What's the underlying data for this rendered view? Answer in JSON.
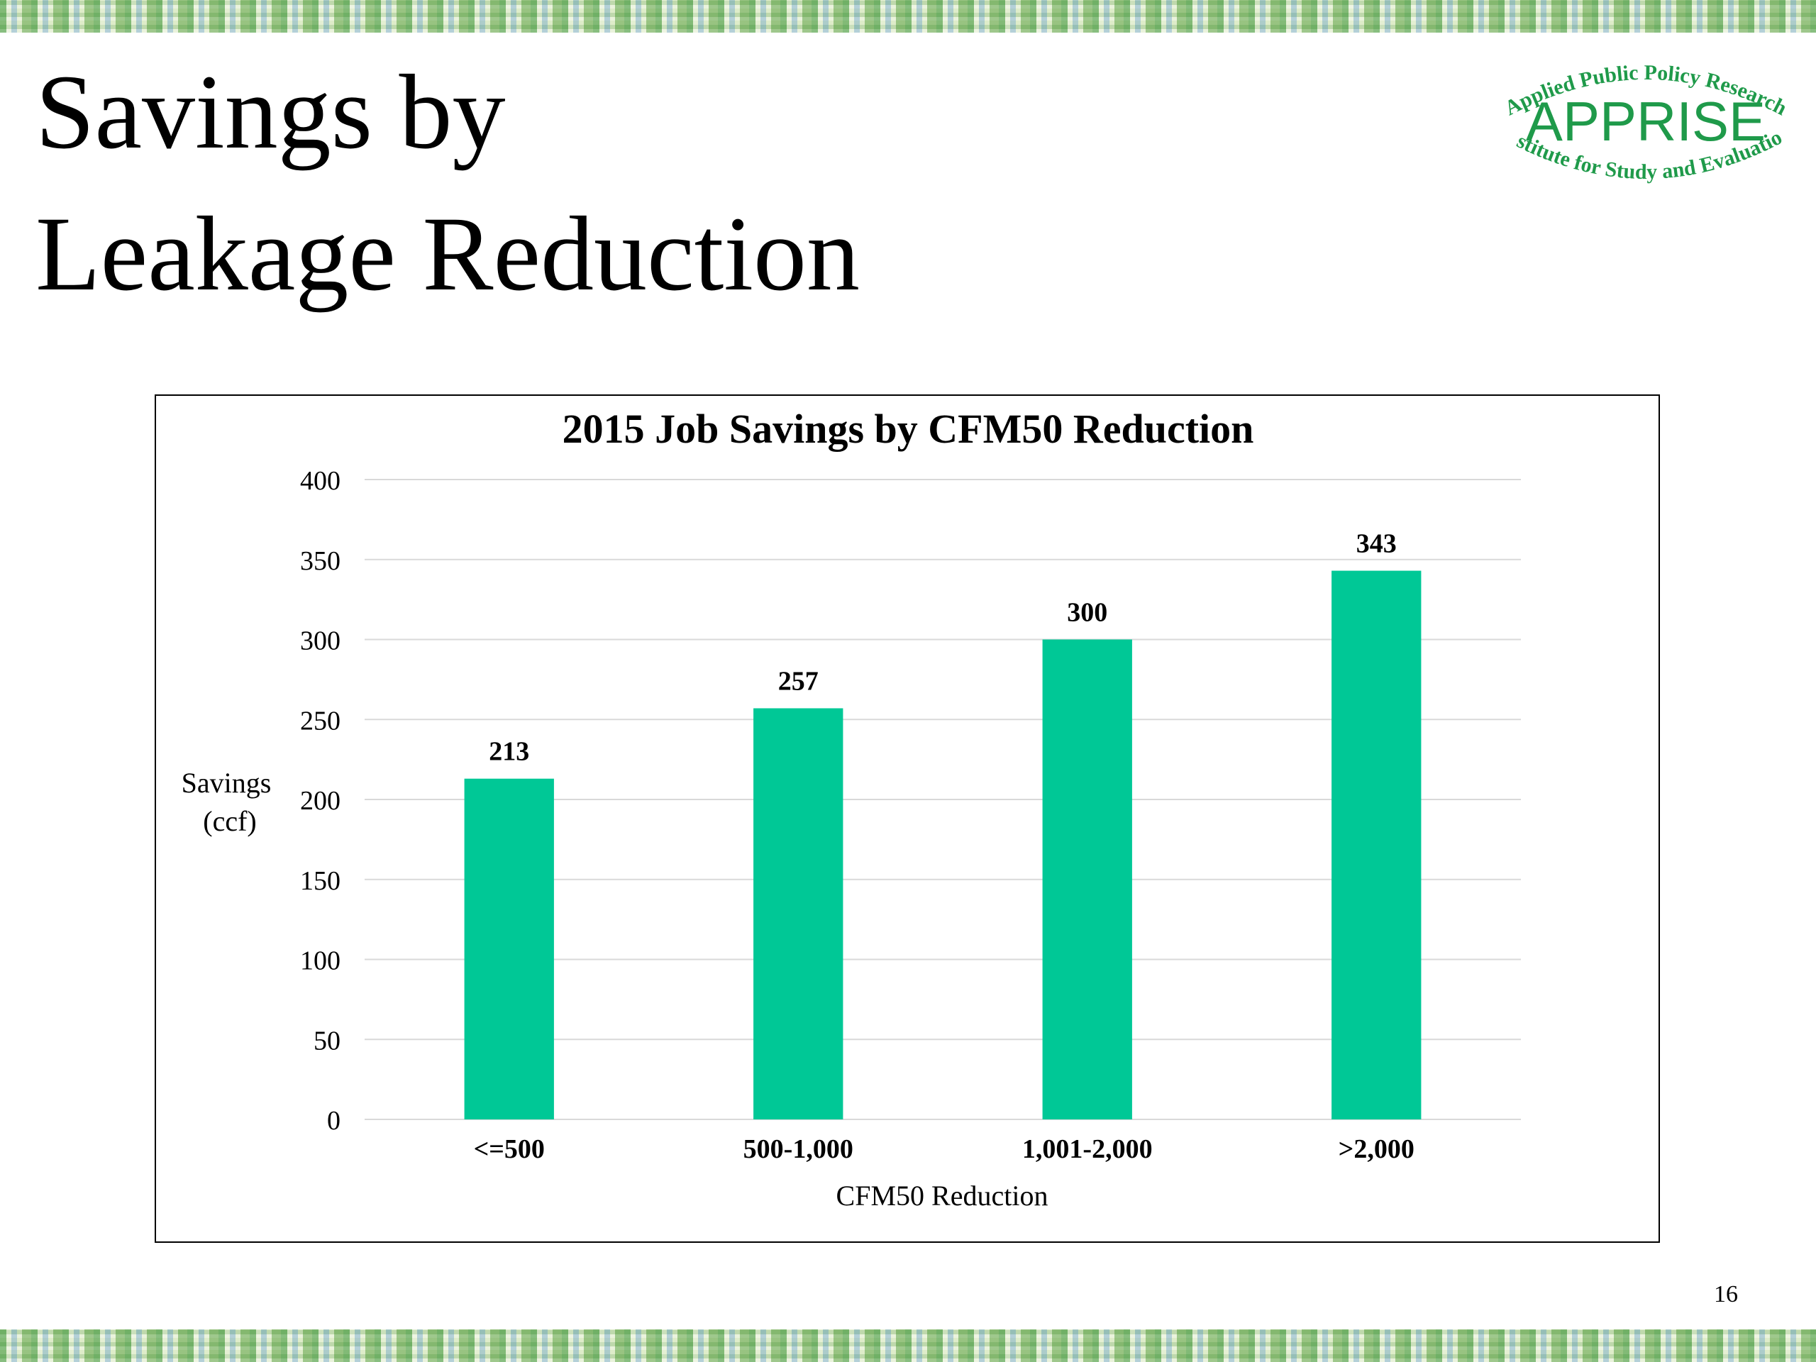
{
  "slide": {
    "title_line1": "Savings by",
    "title_line2": "Leakage Reduction",
    "page_number": "16"
  },
  "logo": {
    "top_arc_text": "Applied Public Policy Research",
    "wordmark": "APPRISE",
    "bottom_arc_text": "Institute for Study and Evaluation",
    "color": "#1f9a4a"
  },
  "chart_data": {
    "type": "bar",
    "title": "2015 Job Savings by CFM50 Reduction",
    "xlabel": "CFM50 Reduction",
    "ylabel_lines": [
      "Savings",
      "(ccf)"
    ],
    "categories": [
      "<=500",
      "500-1,000",
      "1,001-2,000",
      ">2,000"
    ],
    "values": [
      213,
      257,
      300,
      343
    ],
    "data_labels": [
      "213",
      "257",
      "300",
      "343"
    ],
    "ylim": [
      0,
      400
    ],
    "yticks": [
      0,
      50,
      100,
      150,
      200,
      250,
      300,
      350,
      400
    ],
    "grid": true,
    "legend": "none",
    "bar_color": "#00c896"
  }
}
